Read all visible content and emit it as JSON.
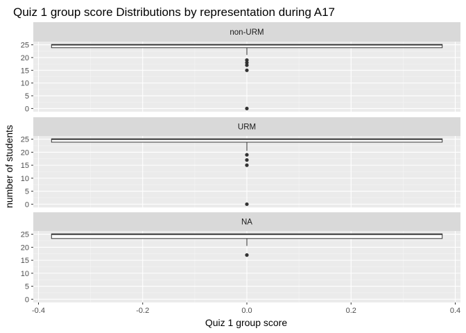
{
  "chart_data": {
    "type": "boxplot",
    "title": "Quiz 1 group score Distributions by representation during A17",
    "xlabel": "Quiz 1 group score",
    "ylabel": "number of students",
    "xlim": [
      -0.41,
      0.41
    ],
    "ylim": [
      -1.25,
      26.25
    ],
    "x_ticks": [
      -0.4,
      -0.2,
      0.0,
      0.2,
      0.4
    ],
    "x_tick_labels": [
      "-0.4",
      "-0.2",
      "0.0",
      "0.2",
      "0.4"
    ],
    "y_ticks": [
      0,
      5,
      10,
      15,
      20,
      25
    ],
    "y_tick_labels": [
      "0",
      "5",
      "10",
      "15",
      "20",
      "25"
    ],
    "grid": true,
    "colors": {
      "panel_bg": "#ebebeb",
      "strip_bg": "#d9d9d9",
      "grid_major": "#ffffff",
      "box_fill": "#ffffff",
      "box_line": "#333333",
      "outlier": "#333333",
      "tick": "#333333"
    },
    "box_x_range": [
      -0.375,
      0.375
    ],
    "panels": [
      {
        "label": "non-URM",
        "box": {
          "lower_whisker": 21,
          "q1": 24,
          "median": 25,
          "q3": 25,
          "upper_whisker": 25
        },
        "outliers": [
          19,
          18,
          17,
          15,
          0
        ]
      },
      {
        "label": "URM",
        "box": {
          "lower_whisker": 20.5,
          "q1": 24,
          "median": 25,
          "q3": 25,
          "upper_whisker": 25
        },
        "outliers": [
          19,
          17,
          15,
          0
        ]
      },
      {
        "label": "NA",
        "box": {
          "lower_whisker": 20.5,
          "q1": 23.5,
          "median": 25,
          "q3": 25,
          "upper_whisker": 25
        },
        "outliers": [
          17
        ]
      }
    ]
  }
}
